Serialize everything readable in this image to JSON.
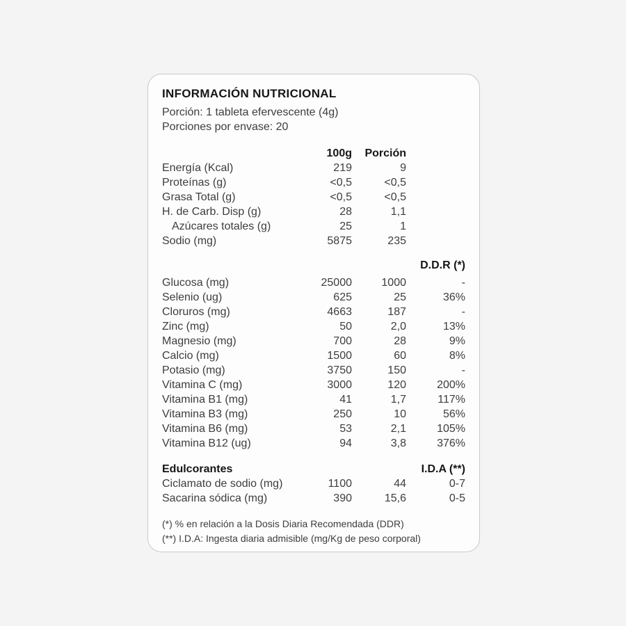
{
  "theme": {
    "page_bg": "#f4f4f5",
    "card_bg": "#fdfdfd",
    "card_border": "#c9c9c9",
    "body_text": "#3d3d3d",
    "heading_text": "#161616"
  },
  "title": "INFORMACIÓN NUTRICIONAL",
  "serving": {
    "portion_line": "Porción: 1 tableta efervescente (4g)",
    "servings_line": "Porciones por envase: 20"
  },
  "columns": {
    "per100g": "100g",
    "portion": "Porción",
    "ddr": "D.D.R (*)",
    "ida": "I.D.A (**)"
  },
  "macros": {
    "rows": [
      {
        "label": "Energía (Kcal)",
        "per100g": "219",
        "portion": "9",
        "indent": false
      },
      {
        "label": "Proteínas (g)",
        "per100g": "<0,5",
        "portion": "<0,5",
        "indent": false
      },
      {
        "label": "Grasa Total (g)",
        "per100g": "<0,5",
        "portion": "<0,5",
        "indent": false
      },
      {
        "label": "H. de Carb. Disp (g)",
        "per100g": "28",
        "portion": "1,1",
        "indent": false
      },
      {
        "label": "Azúcares totales (g)",
        "per100g": "25",
        "portion": "1",
        "indent": true
      },
      {
        "label": "Sodio (mg)",
        "per100g": "5875",
        "portion": "235",
        "indent": false
      }
    ]
  },
  "micros": {
    "rows": [
      {
        "label": "Glucosa (mg)",
        "per100g": "25000",
        "portion": "1000",
        "ddr": "-"
      },
      {
        "label": "Selenio (ug)",
        "per100g": "625",
        "portion": "25",
        "ddr": "36%"
      },
      {
        "label": "Cloruros (mg)",
        "per100g": "4663",
        "portion": "187",
        "ddr": "-"
      },
      {
        "label": "Zinc (mg)",
        "per100g": "50",
        "portion": "2,0",
        "ddr": "13%"
      },
      {
        "label": "Magnesio (mg)",
        "per100g": "700",
        "portion": "28",
        "ddr": "9%"
      },
      {
        "label": "Calcio (mg)",
        "per100g": "1500",
        "portion": "60",
        "ddr": "8%"
      },
      {
        "label": "Potasio (mg)",
        "per100g": "3750",
        "portion": "150",
        "ddr": "-"
      },
      {
        "label": "Vitamina C (mg)",
        "per100g": "3000",
        "portion": "120",
        "ddr": "200%"
      },
      {
        "label": "Vitamina B1 (mg)",
        "per100g": "41",
        "portion": "1,7",
        "ddr": "117%"
      },
      {
        "label": "Vitamina B3 (mg)",
        "per100g": "250",
        "portion": "10",
        "ddr": "56%"
      },
      {
        "label": "Vitamina B6 (mg)",
        "per100g": "53",
        "portion": "2,1",
        "ddr": "105%"
      },
      {
        "label": "Vitamina B12 (ug)",
        "per100g": "94",
        "portion": "3,8",
        "ddr": "376%"
      }
    ]
  },
  "sweeteners": {
    "heading": "Edulcorantes",
    "rows": [
      {
        "label": "Ciclamato de sodio (mg)",
        "per100g": "1100",
        "portion": "44",
        "ida": "0-7"
      },
      {
        "label": "Sacarina sódica (mg)",
        "per100g": "390",
        "portion": "15,6",
        "ida": "0-5"
      }
    ]
  },
  "footnotes": [
    "(*) % en relación a la Dosis Diaria Recomendada (DDR)",
    "(**) I.D.A: Ingesta diaria admisible (mg/Kg de peso corporal)"
  ]
}
